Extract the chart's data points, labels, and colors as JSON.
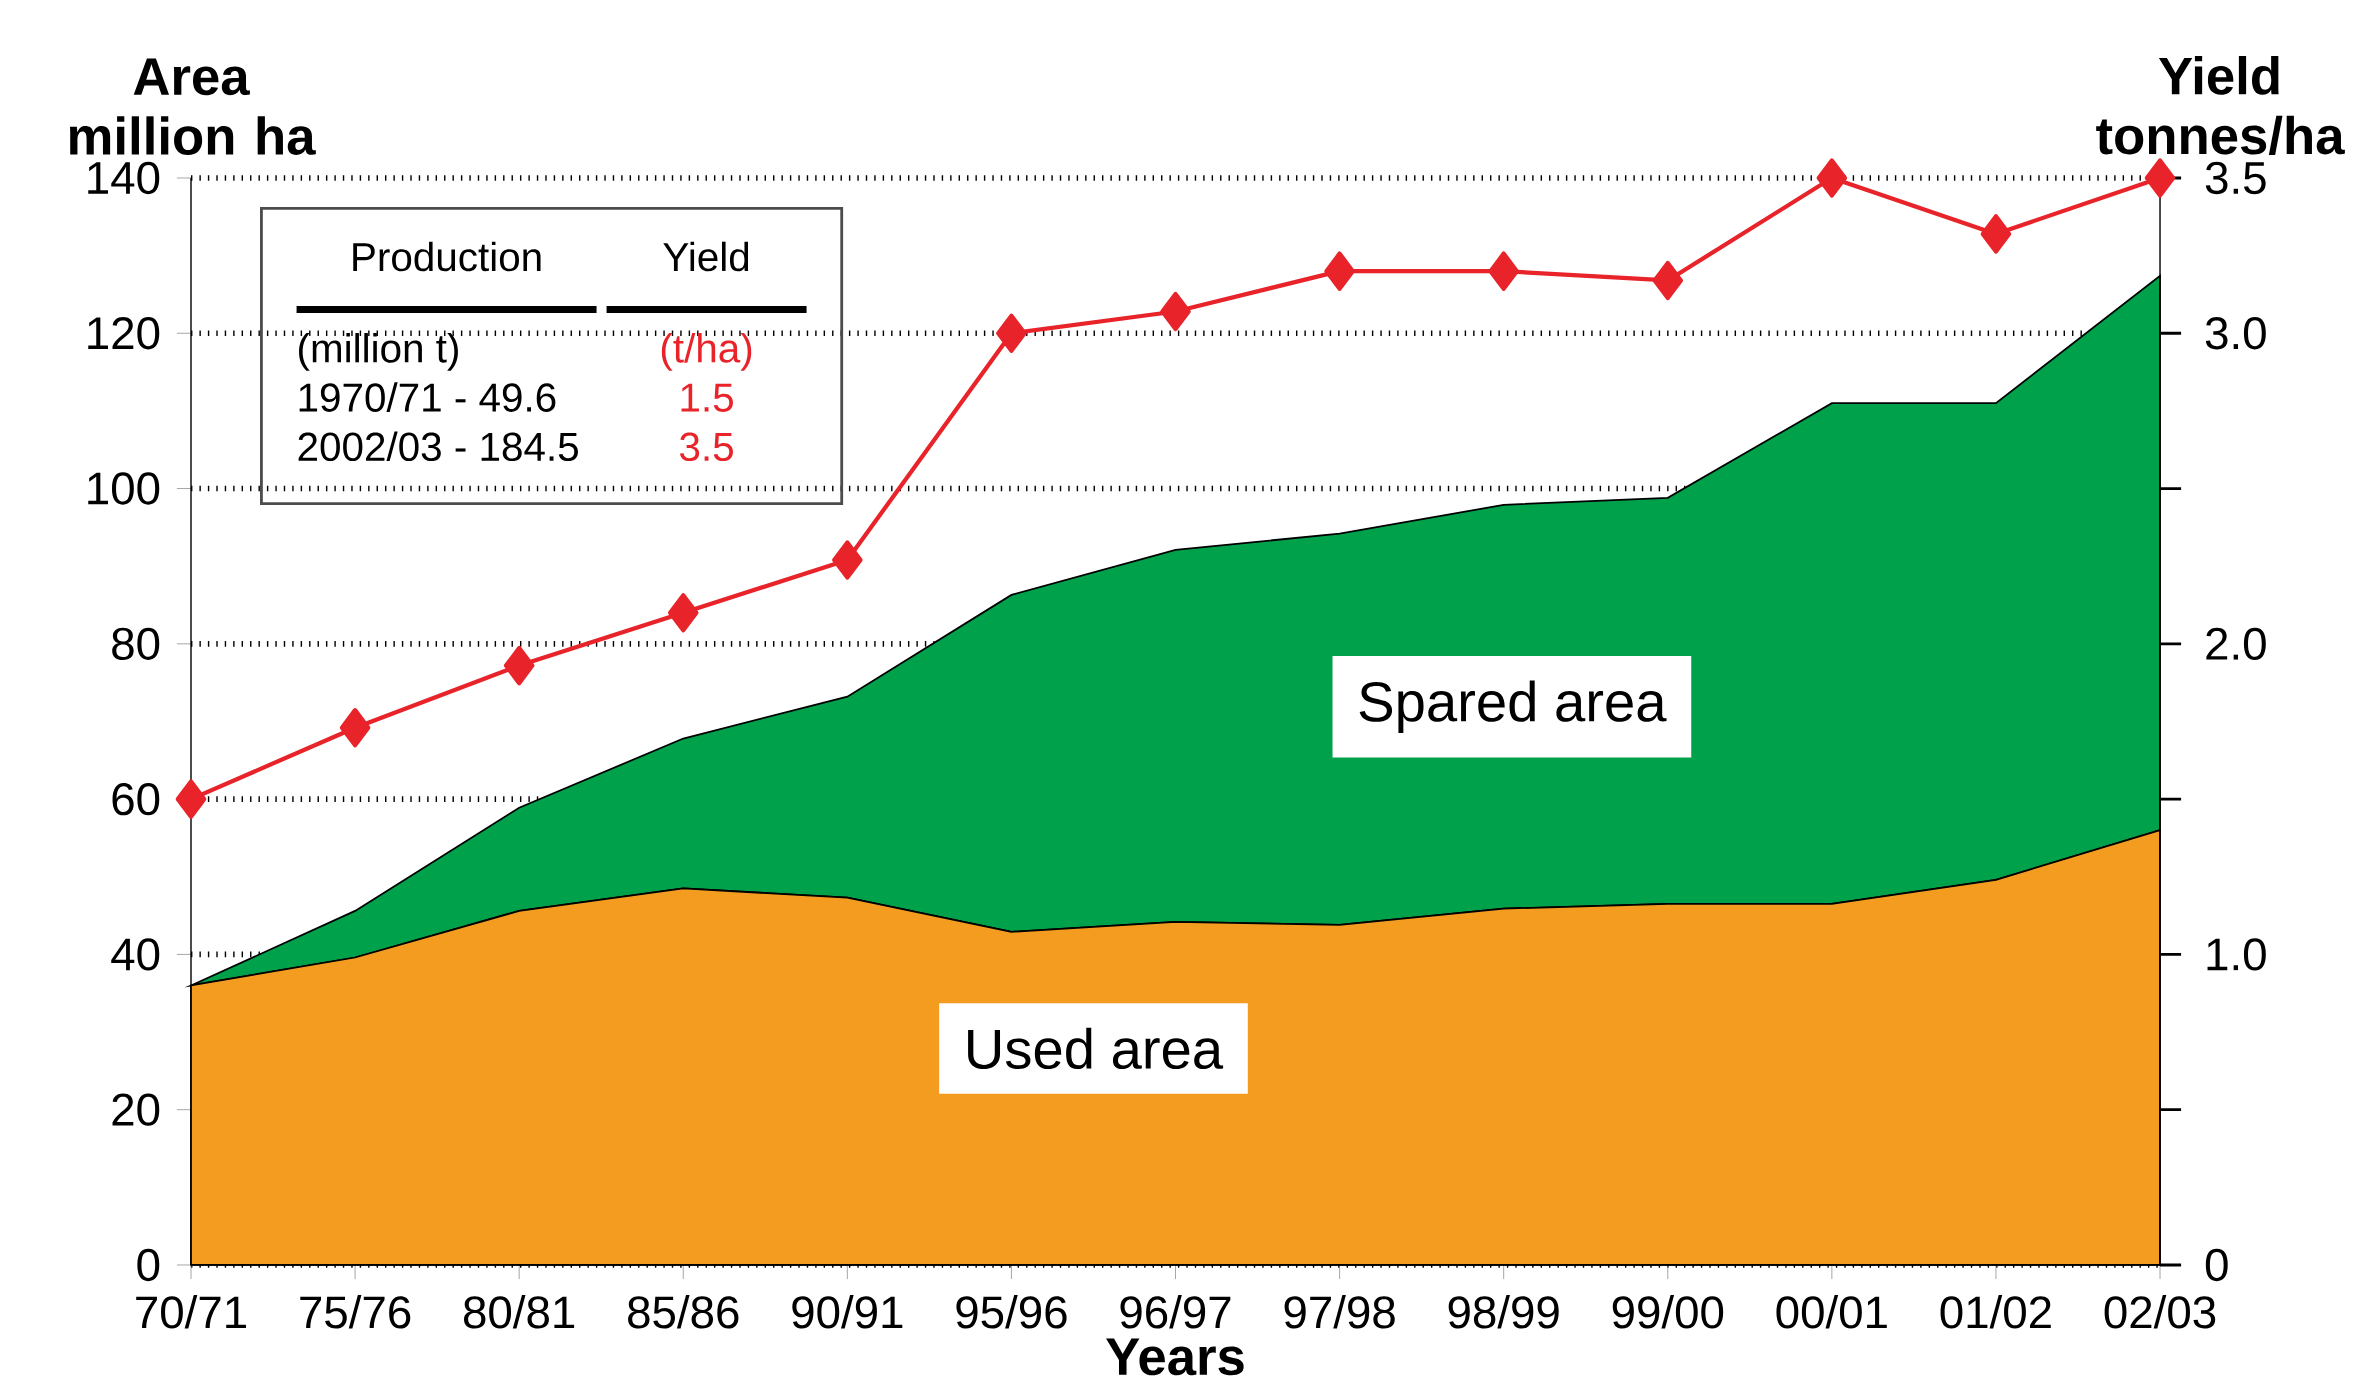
{
  "chart_data": {
    "type": "area",
    "stacked": true,
    "xlabel": "Years",
    "ylabel": "Area million ha",
    "y2label": "Yield tonnes/ha",
    "categories": [
      "70/71",
      "75/76",
      "80/81",
      "85/86",
      "90/91",
      "95/96",
      "96/97",
      "97/98",
      "98/99",
      "99/00",
      "00/01",
      "01/02",
      "02/03"
    ],
    "series": [
      {
        "name": "Used area",
        "color": "#f39c1f",
        "values": [
          36,
          39.6,
          45.6,
          48.5,
          47.3,
          42.9,
          44.2,
          43.8,
          45.9,
          46.5,
          46.5,
          49.6,
          56
        ]
      },
      {
        "name": "Spared area",
        "color": "#00a14b",
        "values": [
          0,
          6,
          13.3,
          19.3,
          25.9,
          43.4,
          47.9,
          50.4,
          52,
          52.3,
          64.5,
          61.4,
          71.4
        ]
      },
      {
        "type": "line",
        "axis": "y2",
        "color": "#e8232a",
        "marker": "diamond",
        "values": [
          1.5,
          1.73,
          1.93,
          2.1,
          2.27,
          3.0,
          3.07,
          3.2,
          3.2,
          3.17,
          3.5,
          3.32,
          3.5
        ]
      }
    ],
    "ylim": [
      0,
      140
    ],
    "yticks": [
      0,
      20,
      40,
      60,
      80,
      100,
      120,
      140
    ],
    "y2lim": [
      0,
      3.5
    ],
    "y2ticks": [
      {
        "value": 0,
        "label": "0"
      },
      {
        "value": 0.5,
        "label": null
      },
      {
        "value": 1,
        "label": "1.0"
      },
      {
        "value": 1.5,
        "label": null
      },
      {
        "value": 2,
        "label": "2.0"
      },
      {
        "value": 2.5,
        "label": null
      },
      {
        "value": 3,
        "label": "3.0"
      },
      {
        "value": 3.5,
        "label": "3.5"
      }
    ],
    "grid": "y",
    "annotations": [
      "Production",
      "Yield",
      "(million t)",
      "(t/ha)",
      "1970/71 - 49.6",
      "1.5",
      "2002/03 - 184.5",
      "3.5"
    ]
  }
}
